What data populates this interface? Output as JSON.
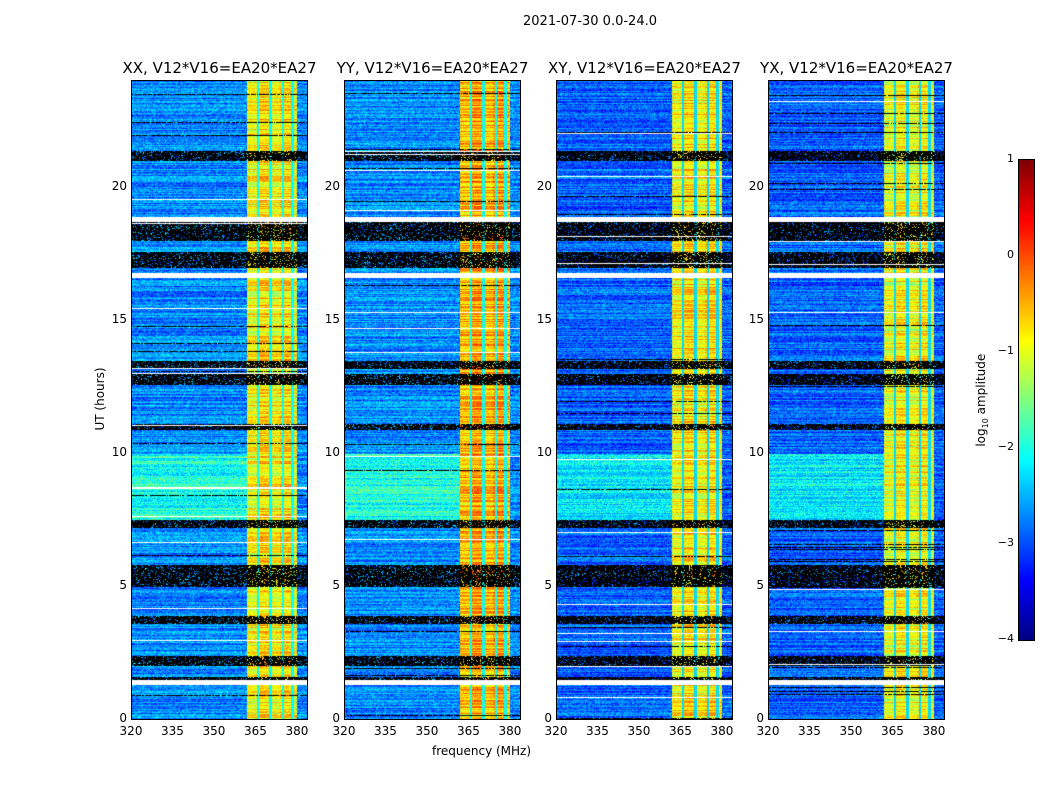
{
  "chart_data": {
    "type": "heatmap",
    "suptitle": "2021-07-30 0.0-24.0",
    "panels": [
      {
        "title": "XX, V12*V16=EA20*EA27"
      },
      {
        "title": "YY, V12*V16=EA20*EA27"
      },
      {
        "title": "XY, V12*V16=EA20*EA27"
      },
      {
        "title": "YX, V12*V16=EA20*EA27"
      }
    ],
    "xlabel": "frequency (MHz)",
    "ylabel": "UT (hours)",
    "xlim": [
      320,
      384
    ],
    "ylim": [
      0,
      24
    ],
    "xticks": [
      "320",
      "335",
      "350",
      "365",
      "380"
    ],
    "xtick_values": [
      320,
      335,
      350,
      365,
      380
    ],
    "yticks": [
      "0",
      "5",
      "10",
      "15",
      "20"
    ],
    "ytick_values": [
      0,
      5,
      10,
      15,
      20
    ],
    "colorbar": {
      "label": "log₁₀ amplitude",
      "label_main": "log",
      "label_sub": "10",
      "label_rest": " amplitude",
      "range": [
        -4,
        1
      ],
      "ticks": [
        "1",
        "0",
        "−1",
        "−2",
        "−3",
        "−4"
      ],
      "tick_values": [
        1,
        0,
        -1,
        -2,
        -3,
        -4
      ],
      "colormap": "jet"
    },
    "bright_band_mhz": [
      362,
      380
    ],
    "flagged_hours": [
      [
        21.0,
        21.4
      ],
      [
        18.0,
        18.7
      ],
      [
        17.0,
        17.6
      ],
      [
        13.2,
        13.5
      ],
      [
        12.6,
        13.0
      ],
      [
        10.9,
        11.1
      ],
      [
        7.2,
        7.5
      ],
      [
        5.0,
        5.8
      ],
      [
        3.6,
        3.9
      ],
      [
        2.0,
        2.4
      ],
      [
        1.5,
        1.6
      ]
    ],
    "no_data_hours": [
      [
        18.7,
        18.9
      ],
      [
        1.3,
        1.5
      ],
      [
        16.6,
        16.8
      ]
    ],
    "baseline_log_amp": {
      "XX": -2.7,
      "YY": -2.7,
      "XY": -2.9,
      "YX": -2.9
    },
    "band_log_amp": {
      "XX": -0.9,
      "YY": -0.6,
      "XY": -0.9,
      "YX": -1.0
    }
  }
}
